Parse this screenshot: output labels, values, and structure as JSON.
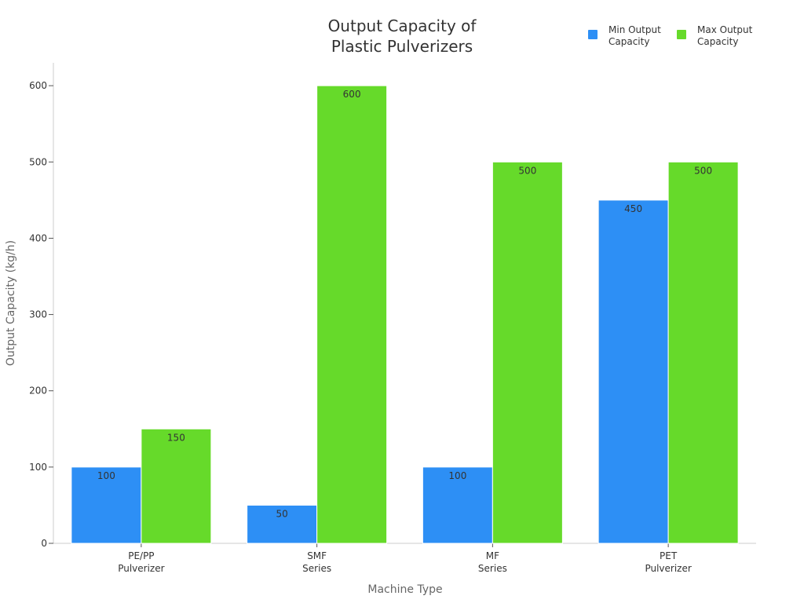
{
  "chart_data": {
    "type": "bar",
    "title": [
      "Output Capacity of",
      "Plastic Pulverizers"
    ],
    "xlabel": "Machine Type",
    "ylabel": "Output Capacity (kg/h)",
    "categories": [
      [
        "PE/PP",
        "Pulverizer"
      ],
      [
        "SMF",
        "Series"
      ],
      [
        "MF",
        "Series"
      ],
      [
        "PET",
        "Pulverizer"
      ]
    ],
    "series": [
      {
        "name": [
          "Min Output",
          "Capacity"
        ],
        "color": "#2d8ff5",
        "values": [
          100,
          50,
          100,
          450
        ]
      },
      {
        "name": [
          "Max Output",
          "Capacity"
        ],
        "color": "#66da2a",
        "values": [
          150,
          600,
          500,
          500
        ]
      }
    ],
    "ylim": [
      0,
      630
    ],
    "yticks": [
      0,
      100,
      200,
      300,
      400,
      500,
      600
    ],
    "grid": false,
    "legend": "top-right",
    "data_labels": true
  }
}
